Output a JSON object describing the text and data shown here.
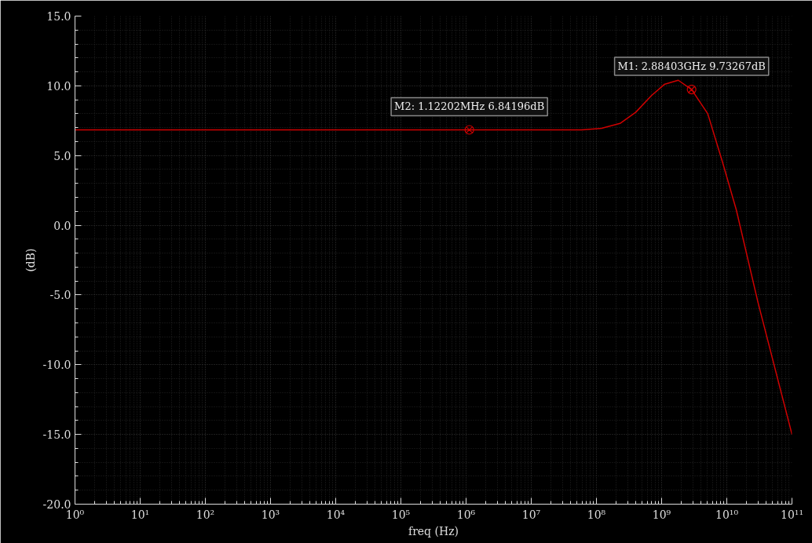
{
  "chart_data": {
    "type": "line",
    "xlabel": "freq (Hz)",
    "ylabel": "(dB)",
    "log": "x",
    "grid": true,
    "marker": "none",
    "line_style": "solid",
    "xlim": [
      1,
      100000000000
    ],
    "xticks": [
      {
        "value": 1,
        "label": "10⁰"
      },
      {
        "value": 10,
        "label": "10¹"
      },
      {
        "value": 100,
        "label": "10²"
      },
      {
        "value": 1000,
        "label": "10³"
      },
      {
        "value": 10000,
        "label": "10⁴"
      },
      {
        "value": 100000,
        "label": "10⁵"
      },
      {
        "value": 1000000,
        "label": "10⁶"
      },
      {
        "value": 10000000,
        "label": "10⁷"
      },
      {
        "value": 100000000,
        "label": "10⁸"
      },
      {
        "value": 1000000000,
        "label": "10⁹"
      },
      {
        "value": 10000000000,
        "label": "10¹⁰"
      },
      {
        "value": 100000000000,
        "label": "10¹¹"
      }
    ],
    "ylim": [
      -20,
      15
    ],
    "yticks": [
      {
        "value": 15,
        "label": "15.0"
      },
      {
        "value": 10,
        "label": "10.0"
      },
      {
        "value": 5,
        "label": "5.0"
      },
      {
        "value": 0,
        "label": "0.0"
      },
      {
        "value": -5,
        "label": "-5.0"
      },
      {
        "value": -10,
        "label": "-10.0"
      },
      {
        "value": -15,
        "label": "-15.0"
      },
      {
        "value": -20,
        "label": "-20.0"
      }
    ],
    "series": [
      {
        "color": "#d00000",
        "x": [
          1,
          1000000,
          60000000,
          120000000,
          230000000,
          400000000,
          700000000,
          1100000000,
          1800000000,
          2884030000,
          5100000000,
          8500000000,
          14000000000,
          30000000000,
          100000000000
        ],
        "values": [
          6.84,
          6.84,
          6.84,
          6.95,
          7.3,
          8.1,
          9.3,
          10.1,
          10.4,
          9.73,
          8.0,
          4.6,
          1.1,
          -5.5,
          -15.0
        ]
      }
    ],
    "annotations": [
      {
        "text": "M2: 1.12202MHz 6.84196dB",
        "x": 1122020,
        "y": 6.84196
      },
      {
        "text": "M1: 2.88403GHz 9.73267dB",
        "x": 2884030000,
        "y": 9.73267
      }
    ]
  }
}
